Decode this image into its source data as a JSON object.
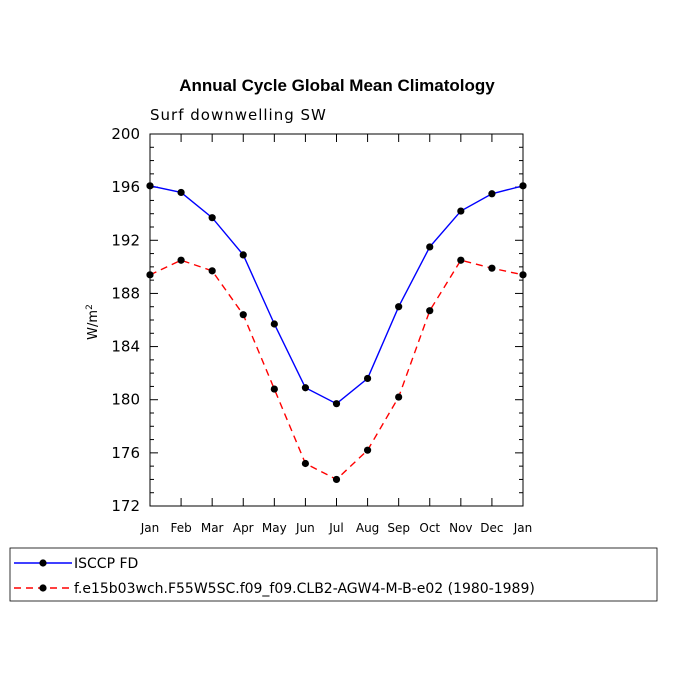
{
  "chart_data": {
    "type": "line",
    "title": "Annual Cycle Global Mean Climatology",
    "subtitle": "Surf downwelling SW",
    "ylabel": "W/m",
    "ylabel_sup": "2",
    "xlabel": "",
    "ylim": [
      172,
      200
    ],
    "yticks": [
      172,
      176,
      180,
      184,
      188,
      192,
      196,
      200
    ],
    "categories": [
      "Jan",
      "Feb",
      "Mar",
      "Apr",
      "May",
      "Jun",
      "Jul",
      "Aug",
      "Sep",
      "Oct",
      "Nov",
      "Dec",
      "Jan"
    ],
    "series": [
      {
        "name": "ISCCP FD",
        "color": "#0000ff",
        "dash": "solid",
        "values": [
          196.1,
          195.6,
          193.7,
          190.9,
          185.7,
          180.9,
          179.7,
          181.6,
          187.0,
          191.5,
          194.2,
          195.5,
          196.1
        ]
      },
      {
        "name": "f.e15b03wch.F55W5SC.f09_f09.CLB2-AGW4-M-B-e02 (1980-1989)",
        "color": "#ff0000",
        "dash": "dashed",
        "values": [
          189.4,
          190.5,
          189.7,
          186.4,
          180.8,
          175.2,
          174.0,
          176.2,
          180.2,
          186.7,
          190.5,
          189.9,
          189.4
        ]
      }
    ],
    "grid": false,
    "legend_position": "bottom"
  }
}
